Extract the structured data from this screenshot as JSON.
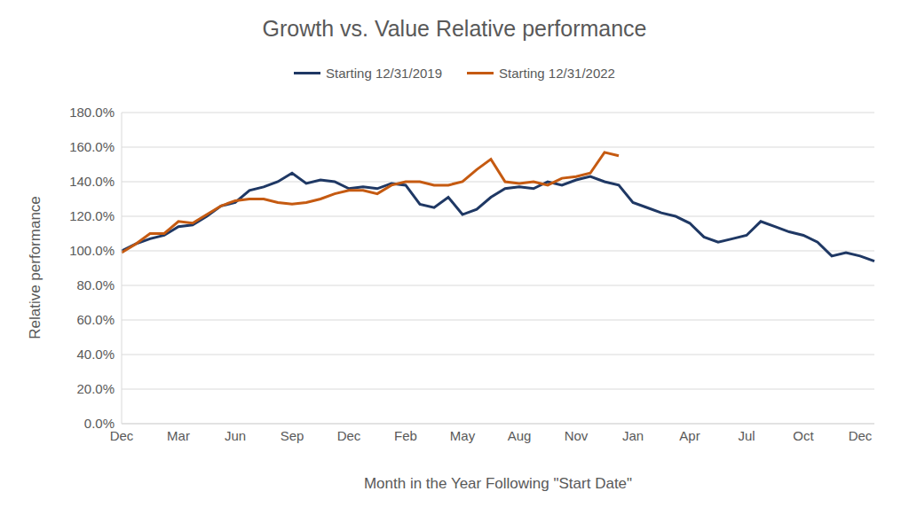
{
  "chart_data": {
    "type": "line",
    "title": "Growth vs. Value Relative performance",
    "x_label": "Month in the Year Following \"Start Date\"",
    "y_label": "Relative performance",
    "categories": [
      "Dec",
      null,
      null,
      null,
      "Mar",
      null,
      null,
      null,
      "Jun",
      null,
      null,
      null,
      "Sep",
      null,
      null,
      null,
      "Dec",
      null,
      null,
      null,
      "Feb",
      null,
      null,
      null,
      "May",
      null,
      null,
      null,
      "Aug",
      null,
      null,
      null,
      "Nov",
      null,
      null,
      null,
      "Jan",
      null,
      null,
      null,
      "Apr",
      null,
      null,
      null,
      "Jul",
      null,
      null,
      null,
      "Oct",
      null,
      null,
      null,
      "Dec",
      null
    ],
    "series": [
      {
        "name": "Starting 12/31/2019",
        "color": "#1f3864",
        "values": [
          100,
          104,
          107,
          109,
          114,
          115,
          120,
          126,
          128,
          135,
          137,
          140,
          145,
          139,
          141,
          140,
          136,
          137,
          136,
          139,
          138,
          127,
          125,
          131,
          121,
          124,
          131,
          136,
          137,
          136,
          140,
          138,
          141,
          143,
          140,
          138,
          128,
          125,
          122,
          120,
          116,
          108,
          105,
          107,
          109,
          117,
          114,
          111,
          109,
          105,
          97,
          99,
          97,
          94
        ]
      },
      {
        "name": "Starting 12/31/2022",
        "color": "#c55a11",
        "values": [
          99,
          104,
          110,
          110,
          117,
          116,
          121,
          126,
          129,
          130,
          130,
          128,
          127,
          128,
          130,
          133,
          135,
          135,
          133,
          138,
          140,
          140,
          138,
          138,
          140,
          147,
          153,
          140,
          139,
          140,
          138,
          142,
          143,
          145,
          157,
          155,
          null,
          null,
          null,
          null,
          null,
          null,
          null,
          null,
          null,
          null,
          null,
          null,
          null,
          null,
          null,
          null,
          null,
          null
        ]
      }
    ],
    "ylim": [
      0,
      180
    ],
    "yticks": [
      {
        "value": 0,
        "label": "0.0%"
      },
      {
        "value": 20,
        "label": "20.0%"
      },
      {
        "value": 40,
        "label": "40.0%"
      },
      {
        "value": 60,
        "label": "60.0%"
      },
      {
        "value": 80,
        "label": "80.0%"
      },
      {
        "value": 100,
        "label": "100.0%"
      },
      {
        "value": 120,
        "label": "120.0%"
      },
      {
        "value": 140,
        "label": "140.0%"
      },
      {
        "value": 160,
        "label": "160.0%"
      },
      {
        "value": 180,
        "label": "180.0%"
      }
    ],
    "grid": true,
    "legend": "top"
  }
}
